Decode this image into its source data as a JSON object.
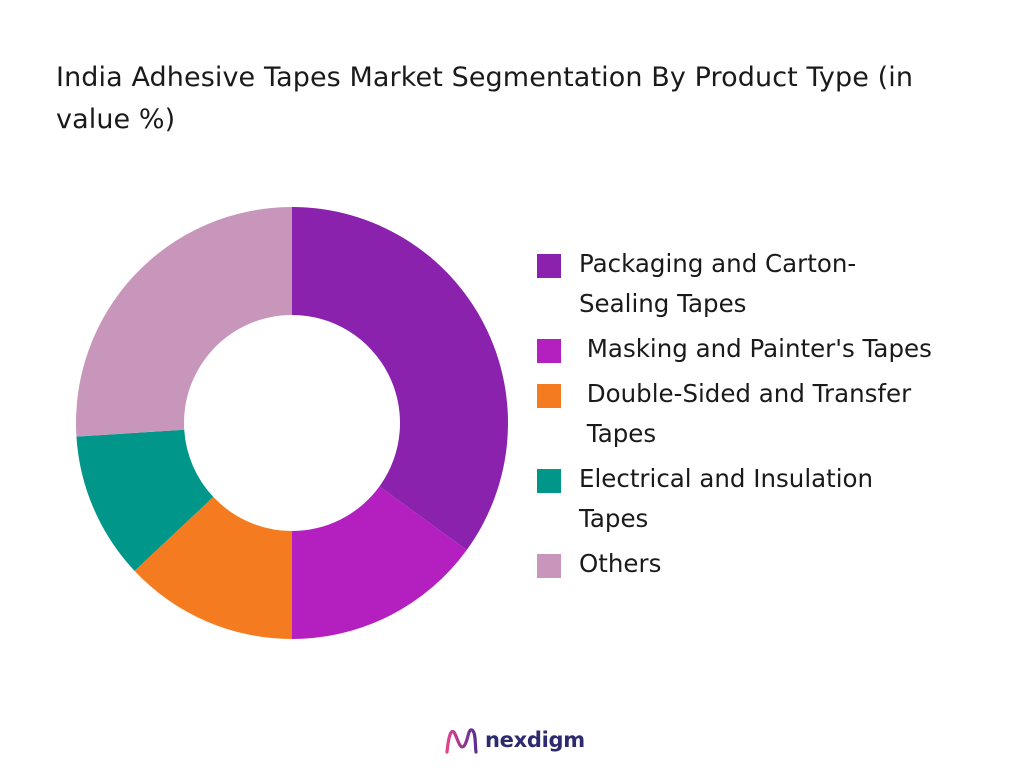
{
  "chart_data": {
    "type": "pie",
    "title": "India Adhesive Tapes Market Segmentation By Product Type (in value %)",
    "style": "donut",
    "legend_position": "right",
    "categories": [
      "Packaging and Carton-\nSealing Tapes",
      " Masking and Painter's Tapes",
      " Double-Sided and Transfer\n Tapes",
      "Electrical and Insulation\nTapes",
      "Others"
    ],
    "values": [
      35,
      15,
      13,
      11,
      26
    ],
    "colors": [
      "#8a22ad",
      "#b41fbf",
      "#f47b20",
      "#00968a",
      "#c896bb"
    ]
  },
  "brand": {
    "name": "nexdigm",
    "logo_icon": "nexdigm-wave-logo"
  }
}
